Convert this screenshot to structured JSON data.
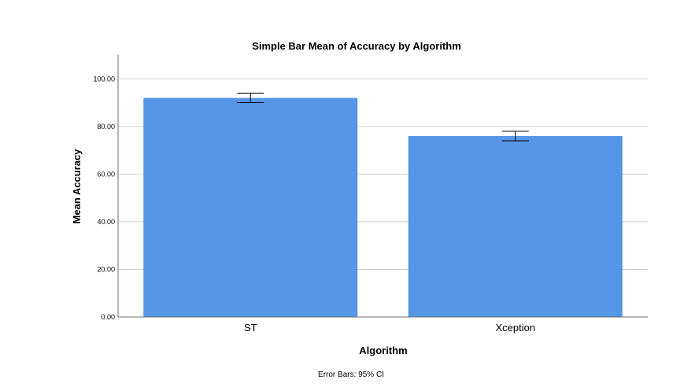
{
  "chart_data": {
    "type": "bar",
    "title": "Simple Bar Mean of Accuracy by Algorithm",
    "xlabel": "Algorithm",
    "ylabel": "Mean Accuracy",
    "categories": [
      "ST",
      "Xception"
    ],
    "values": [
      92.0,
      76.0
    ],
    "error_bars": [
      {
        "low": 90.0,
        "high": 94.0
      },
      {
        "low": 74.0,
        "high": 78.0
      }
    ],
    "ylim": [
      0,
      110
    ],
    "yticks": [
      "0.00",
      "20.00",
      "40.00",
      "60.00",
      "80.00",
      "100.00"
    ],
    "ytick_values": [
      0,
      20,
      40,
      60,
      80,
      100
    ],
    "grid": true,
    "footnote": "Error Bars: 95% CI",
    "colors": {
      "bar": "#5596e6",
      "grid": "#cfcfcf",
      "axis": "#6e6e6e",
      "error_bar": "#000000"
    }
  }
}
